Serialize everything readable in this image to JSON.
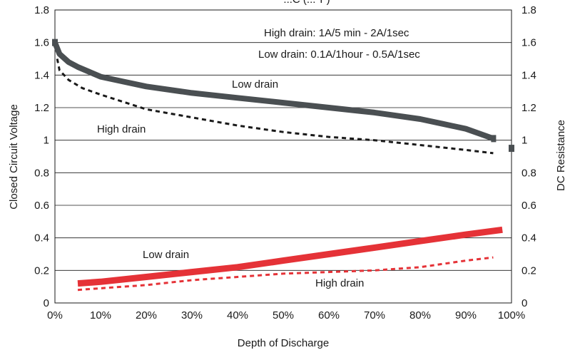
{
  "chart_data": {
    "type": "line",
    "title": "...C (...°F)",
    "xlabel": "Depth of Discharge",
    "ylabel_left": "Closed Circuit Voltage",
    "ylabel_right": "DC Resistance",
    "xlim": [
      0,
      100
    ],
    "ylim_left": [
      0,
      1.8
    ],
    "ylim_right": [
      0,
      1.8
    ],
    "x_ticks": [
      {
        "value": 0,
        "label": "0%"
      },
      {
        "value": 10,
        "label": "10%"
      },
      {
        "value": 20,
        "label": "20%"
      },
      {
        "value": 30,
        "label": "30%"
      },
      {
        "value": 40,
        "label": "40%"
      },
      {
        "value": 50,
        "label": "50%"
      },
      {
        "value": 60,
        "label": "60%"
      },
      {
        "value": 70,
        "label": "70%"
      },
      {
        "value": 80,
        "label": "80%"
      },
      {
        "value": 90,
        "label": "90%"
      },
      {
        "value": 100,
        "label": "100%"
      }
    ],
    "y_ticks_left": [
      {
        "value": 0,
        "label": "0"
      },
      {
        "value": 0.2,
        "label": "0.2"
      },
      {
        "value": 0.4,
        "label": "0.4"
      },
      {
        "value": 0.6,
        "label": "0.6"
      },
      {
        "value": 0.8,
        "label": "0.8"
      },
      {
        "value": 1.0,
        "label": "1"
      },
      {
        "value": 1.2,
        "label": "1.2"
      },
      {
        "value": 1.4,
        "label": "1.4"
      },
      {
        "value": 1.6,
        "label": "1.6"
      },
      {
        "value": 1.8,
        "label": "1.8"
      }
    ],
    "y_ticks_right": [
      {
        "value": 0,
        "label": "0"
      },
      {
        "value": 0.2,
        "label": "0.2"
      },
      {
        "value": 0.4,
        "label": "0.4"
      },
      {
        "value": 0.6,
        "label": "0.6"
      },
      {
        "value": 0.8,
        "label": "0.8"
      },
      {
        "value": 1.0,
        "label": "1"
      },
      {
        "value": 1.2,
        "label": "1.2"
      },
      {
        "value": 1.4,
        "label": "1.4"
      },
      {
        "value": 1.6,
        "label": "1.6"
      },
      {
        "value": 1.8,
        "label": "1.8"
      }
    ],
    "grid": "horizontal",
    "series": [
      {
        "axis": "left",
        "style": "solid",
        "color": "#4a4f52",
        "x": [
          0,
          1,
          3,
          5,
          10,
          15,
          20,
          30,
          40,
          50,
          60,
          70,
          80,
          85,
          90,
          93,
          96
        ],
        "y": [
          1.6,
          1.53,
          1.48,
          1.45,
          1.39,
          1.36,
          1.33,
          1.29,
          1.26,
          1.23,
          1.2,
          1.17,
          1.13,
          1.1,
          1.07,
          1.04,
          1.01
        ]
      },
      {
        "axis": "left",
        "style": "dashed",
        "color": "#1a1a1a",
        "x": [
          0.5,
          1,
          3,
          6,
          10,
          20,
          30,
          40,
          50,
          60,
          70,
          80,
          90,
          96
        ],
        "y": [
          1.5,
          1.43,
          1.37,
          1.32,
          1.28,
          1.19,
          1.14,
          1.09,
          1.05,
          1.02,
          1.0,
          0.97,
          0.94,
          0.92
        ]
      },
      {
        "axis": "right",
        "style": "solid",
        "color": "#e53237",
        "x": [
          5,
          10,
          20,
          30,
          40,
          50,
          60,
          70,
          80,
          90,
          98
        ],
        "y": [
          0.12,
          0.13,
          0.16,
          0.19,
          0.22,
          0.26,
          0.3,
          0.34,
          0.38,
          0.42,
          0.45
        ]
      },
      {
        "axis": "right",
        "style": "dashed",
        "color": "#e53237",
        "x": [
          5,
          10,
          20,
          30,
          40,
          50,
          60,
          70,
          80,
          90,
          96
        ],
        "y": [
          0.08,
          0.09,
          0.11,
          0.14,
          0.16,
          0.18,
          0.19,
          0.2,
          0.22,
          0.26,
          0.28
        ]
      }
    ],
    "end_marker": {
      "axis": "right",
      "x": 100,
      "y": 0.95,
      "color": "#4a4f52"
    },
    "annotations": [
      {
        "id": "legend-high",
        "text": "High drain: 1A/5 min - 2A/1sec"
      },
      {
        "id": "legend-low",
        "text": "Low drain: 0.1A/1hour - 0.5A/1sec"
      },
      {
        "id": "label-low-voltage",
        "text": "Low drain"
      },
      {
        "id": "label-high-voltage",
        "text": "High drain"
      },
      {
        "id": "label-low-resistance",
        "text": "Low drain"
      },
      {
        "id": "label-high-resistance",
        "text": "High drain"
      }
    ]
  }
}
